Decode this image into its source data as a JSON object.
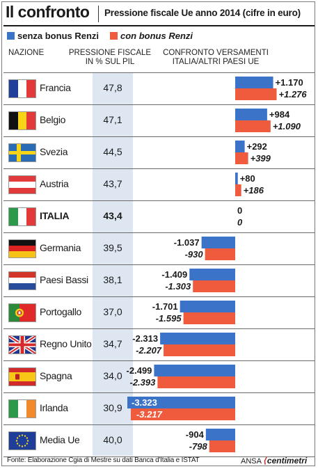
{
  "header": {
    "title": "Il confronto",
    "subtitle": "Pressione fiscale Ue anno 2014 (cifre in euro)"
  },
  "colors": {
    "senza": "#3b73c8",
    "con": "#ee5b3d",
    "band": "#dde6f1"
  },
  "legend": {
    "senza": "senza bonus Renzi",
    "con": "con bonus Renzi"
  },
  "columns": {
    "nation": "NAZIONE",
    "pil_line1": "PRESSIONE FISCALE",
    "pil_line2": "IN % SUL PIL",
    "cmp_line1": "CONFRONTO VERSAMENTI",
    "cmp_line2": "ITALIA/ALTRI PAESI UE"
  },
  "rows": [
    {
      "nation": "Francia",
      "pil": "47,8",
      "senza_label": "+1.170",
      "con_label": "+1.276",
      "flag": "fr-flag"
    },
    {
      "nation": "Belgio",
      "pil": "47,1",
      "senza_label": "+984",
      "con_label": "+1.090",
      "flag": "be-flag"
    },
    {
      "nation": "Svezia",
      "pil": "44,5",
      "senza_label": "+292",
      "con_label": "+399",
      "flag": "se-flag"
    },
    {
      "nation": "Austria",
      "pil": "43,7",
      "senza_label": "+80",
      "con_label": "+186",
      "flag": "at-flag"
    },
    {
      "nation": "ITALIA",
      "pil": "43,4",
      "senza_label": "0",
      "con_label": "0",
      "flag": "it-flag"
    },
    {
      "nation": "Germania",
      "pil": "39,5",
      "senza_label": "-1.037",
      "con_label": "-930",
      "flag": "de-flag"
    },
    {
      "nation": "Paesi Bassi",
      "pil": "38,1",
      "senza_label": "-1.409",
      "con_label": "-1.303",
      "flag": "nl-flag"
    },
    {
      "nation": "Portogallo",
      "pil": "37,0",
      "senza_label": "-1.701",
      "con_label": "-1.595",
      "flag": "pt-flag"
    },
    {
      "nation": "Regno Unito",
      "pil": "34,7",
      "senza_label": "-2.313",
      "con_label": "-2.207",
      "flag": "uk-flag"
    },
    {
      "nation": "Spagna",
      "pil": "34,0",
      "senza_label": "-2.499",
      "con_label": "-2.393",
      "flag": "es-flag"
    },
    {
      "nation": "Irlanda",
      "pil": "30,9",
      "senza_label": "-3.323",
      "con_label": "-3.217",
      "flag": "ie-flag"
    },
    {
      "nation": "Media Ue",
      "pil": "40,0",
      "senza_label": "-904",
      "con_label": "-798",
      "flag": "eu-flag"
    }
  ],
  "chart_data": {
    "type": "bar",
    "orientation": "horizontal",
    "categories": [
      "Francia",
      "Belgio",
      "Svezia",
      "Austria",
      "ITALIA",
      "Germania",
      "Paesi Bassi",
      "Portogallo",
      "Regno Unito",
      "Spagna",
      "Irlanda",
      "Media Ue"
    ],
    "series": [
      {
        "name": "senza bonus Renzi",
        "values": [
          1170,
          984,
          292,
          80,
          0,
          -1037,
          -1409,
          -1701,
          -2313,
          -2499,
          -3323,
          -904
        ]
      },
      {
        "name": "con bonus Renzi",
        "values": [
          1276,
          1090,
          399,
          186,
          0,
          -930,
          -1303,
          -1595,
          -2207,
          -2393,
          -3217,
          -798
        ]
      }
    ],
    "pressione_fiscale_pct_pil": [
      47.8,
      47.1,
      44.5,
      43.7,
      43.4,
      39.5,
      38.1,
      37.0,
      34.7,
      34.0,
      30.9,
      40.0
    ],
    "xlim": [
      -3323,
      1276
    ],
    "grid": false
  },
  "footer": {
    "source": "Fonte: Elaborazione Cgia di Mestre su dati Banca d'Italia e ISTAT",
    "brand_a": "ANSA",
    "brand_b": "centimetri"
  }
}
